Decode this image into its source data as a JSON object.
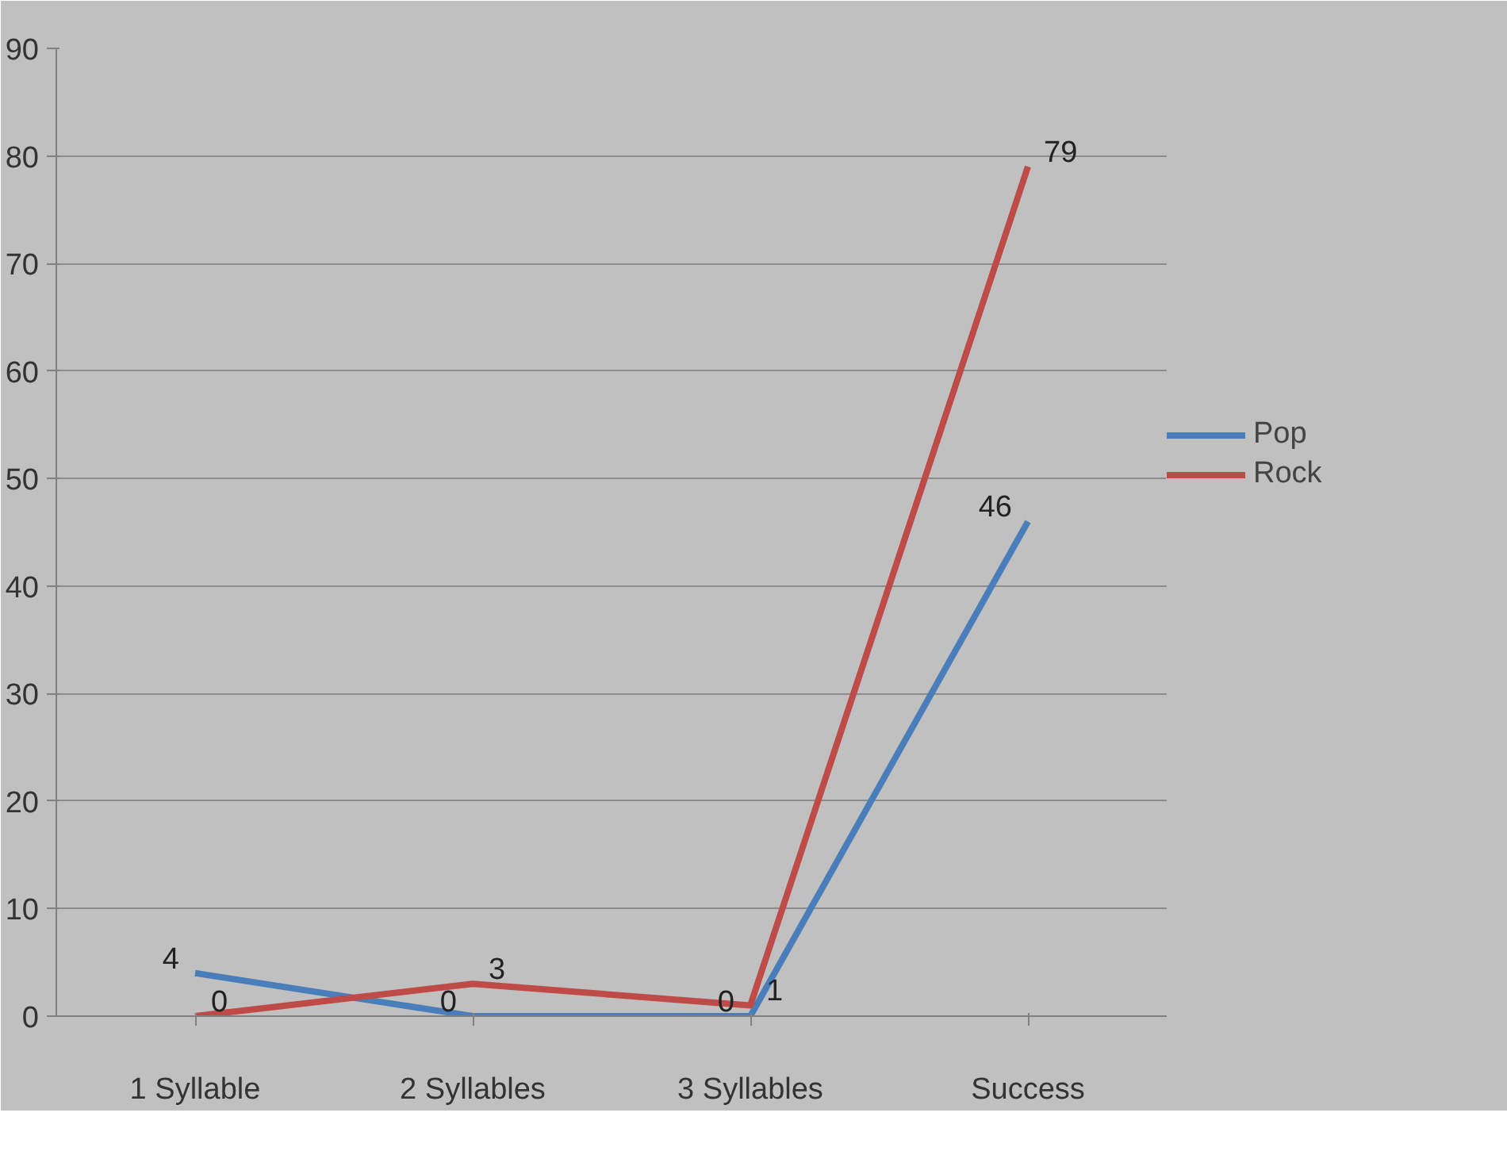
{
  "chart_data": {
    "type": "line",
    "categories": [
      "1 Syllable",
      "2 Syllables",
      "3 Syllables",
      "Success"
    ],
    "series": [
      {
        "name": "Pop",
        "color": "#4a7ebb",
        "values": [
          4,
          0,
          0,
          46
        ]
      },
      {
        "name": "Rock",
        "color": "#be4b48",
        "values": [
          0,
          3,
          1,
          79
        ]
      }
    ],
    "ylim": [
      0,
      90
    ],
    "yticks": [
      0,
      10,
      20,
      30,
      40,
      50,
      60,
      70,
      80,
      90
    ],
    "grid": "y",
    "legend": "right",
    "data_labels": true,
    "marker": "none",
    "line_style": "solid"
  }
}
